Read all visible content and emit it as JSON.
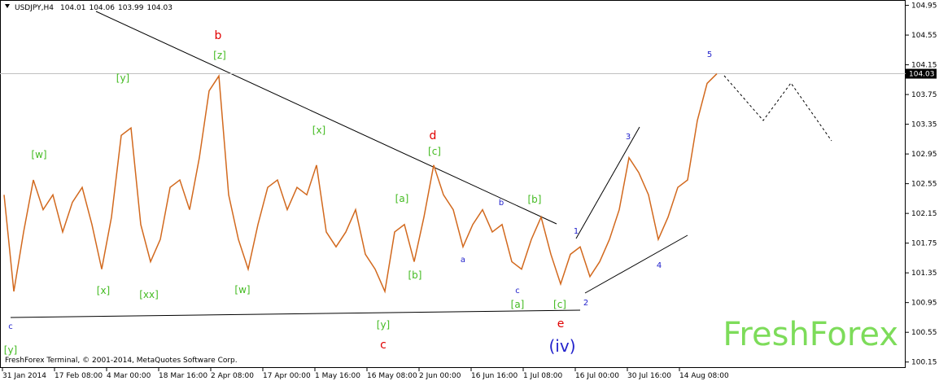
{
  "chart_data": {
    "type": "line",
    "symbol": "USDJPY,H4",
    "ohlc": [
      104.01,
      104.06,
      103.99,
      104.03
    ],
    "last_price": 104.03,
    "copyright": "FreshForex Terminal, © 2001-2014, MetaQuotes Software Corp.",
    "watermark": "FreshForex",
    "x_labels": [
      "31 Jan 2014",
      "17 Feb 08:00",
      "4 Mar 00:00",
      "18 Mar 16:00",
      "2 Apr 08:00",
      "17 Apr 00:00",
      "1 May 16:00",
      "16 May 08:00",
      "2 Jun 00:00",
      "16 Jun 16:00",
      "1 Jul 08:00",
      "16 Jul 00:00",
      "30 Jul 16:00",
      "14 Aug 08:00"
    ],
    "series": [
      {
        "name": "USDJPY",
        "color": "#d2691e",
        "values": [
          102.4,
          101.1,
          101.9,
          102.6,
          102.2,
          102.4,
          101.9,
          102.3,
          102.5,
          102.0,
          101.4,
          102.1,
          103.2,
          103.3,
          102.0,
          101.5,
          101.8,
          102.5,
          102.6,
          102.2,
          102.9,
          103.8,
          104.0,
          102.4,
          101.8,
          101.4,
          102.0,
          102.5,
          102.6,
          102.2,
          102.5,
          102.4,
          102.8,
          101.9,
          101.7,
          101.9,
          102.2,
          101.6,
          101.4,
          101.1,
          101.9,
          102.0,
          101.5,
          102.1,
          102.8,
          102.4,
          102.2,
          101.7,
          102.0,
          102.2,
          101.9,
          102.0,
          101.5,
          101.4,
          101.8,
          102.1,
          101.6,
          101.2,
          101.6,
          101.7,
          101.3,
          101.5,
          101.8,
          102.2,
          102.9,
          102.7,
          102.4,
          101.8,
          102.1,
          102.5,
          102.6,
          103.4,
          103.9,
          104.03
        ]
      }
    ],
    "ylim": [
      100.07,
      105.0
    ],
    "yticks": [
      104.95,
      104.55,
      104.15,
      103.75,
      103.35,
      102.95,
      102.55,
      102.15,
      101.75,
      101.35,
      100.95,
      100.55,
      100.15
    ],
    "annotations": [
      {
        "text": "b",
        "color": "#e00000"
      },
      {
        "text": "[z]",
        "color": "#44bb22"
      },
      {
        "text": "[y]",
        "color": "#44bb22"
      },
      {
        "text": "[w]",
        "color": "#44bb22"
      },
      {
        "text": "[x]",
        "color": "#44bb22"
      },
      {
        "text": "[xx]",
        "color": "#44bb22"
      },
      {
        "text": "[w]",
        "color": "#44bb22"
      },
      {
        "text": "[x]",
        "color": "#44bb22"
      },
      {
        "text": "d",
        "color": "#e00000"
      },
      {
        "text": "[c]",
        "color": "#44bb22"
      },
      {
        "text": "[a]",
        "color": "#44bb22"
      },
      {
        "text": "[b]",
        "color": "#44bb22"
      },
      {
        "text": "a",
        "color": "#2222cc"
      },
      {
        "text": "b",
        "color": "#2222cc"
      },
      {
        "text": "[b]",
        "color": "#44bb22"
      },
      {
        "text": "c",
        "color": "#2222cc"
      },
      {
        "text": "[a]",
        "color": "#44bb22"
      },
      {
        "text": "[c]",
        "color": "#44bb22"
      },
      {
        "text": "e",
        "color": "#e00000"
      },
      {
        "text": "(iv)",
        "color": "#2222cc"
      },
      {
        "text": "1",
        "color": "#2222cc"
      },
      {
        "text": "2",
        "color": "#2222cc"
      },
      {
        "text": "3",
        "color": "#2222cc"
      },
      {
        "text": "4",
        "color": "#2222cc"
      },
      {
        "text": "5",
        "color": "#2222cc"
      },
      {
        "text": "[y]",
        "color": "#44bb22"
      },
      {
        "text": "c",
        "color": "#e00000"
      },
      {
        "text": "c",
        "color": "#2222cc"
      },
      {
        "text": "[y]",
        "color": "#44bb22"
      }
    ]
  }
}
